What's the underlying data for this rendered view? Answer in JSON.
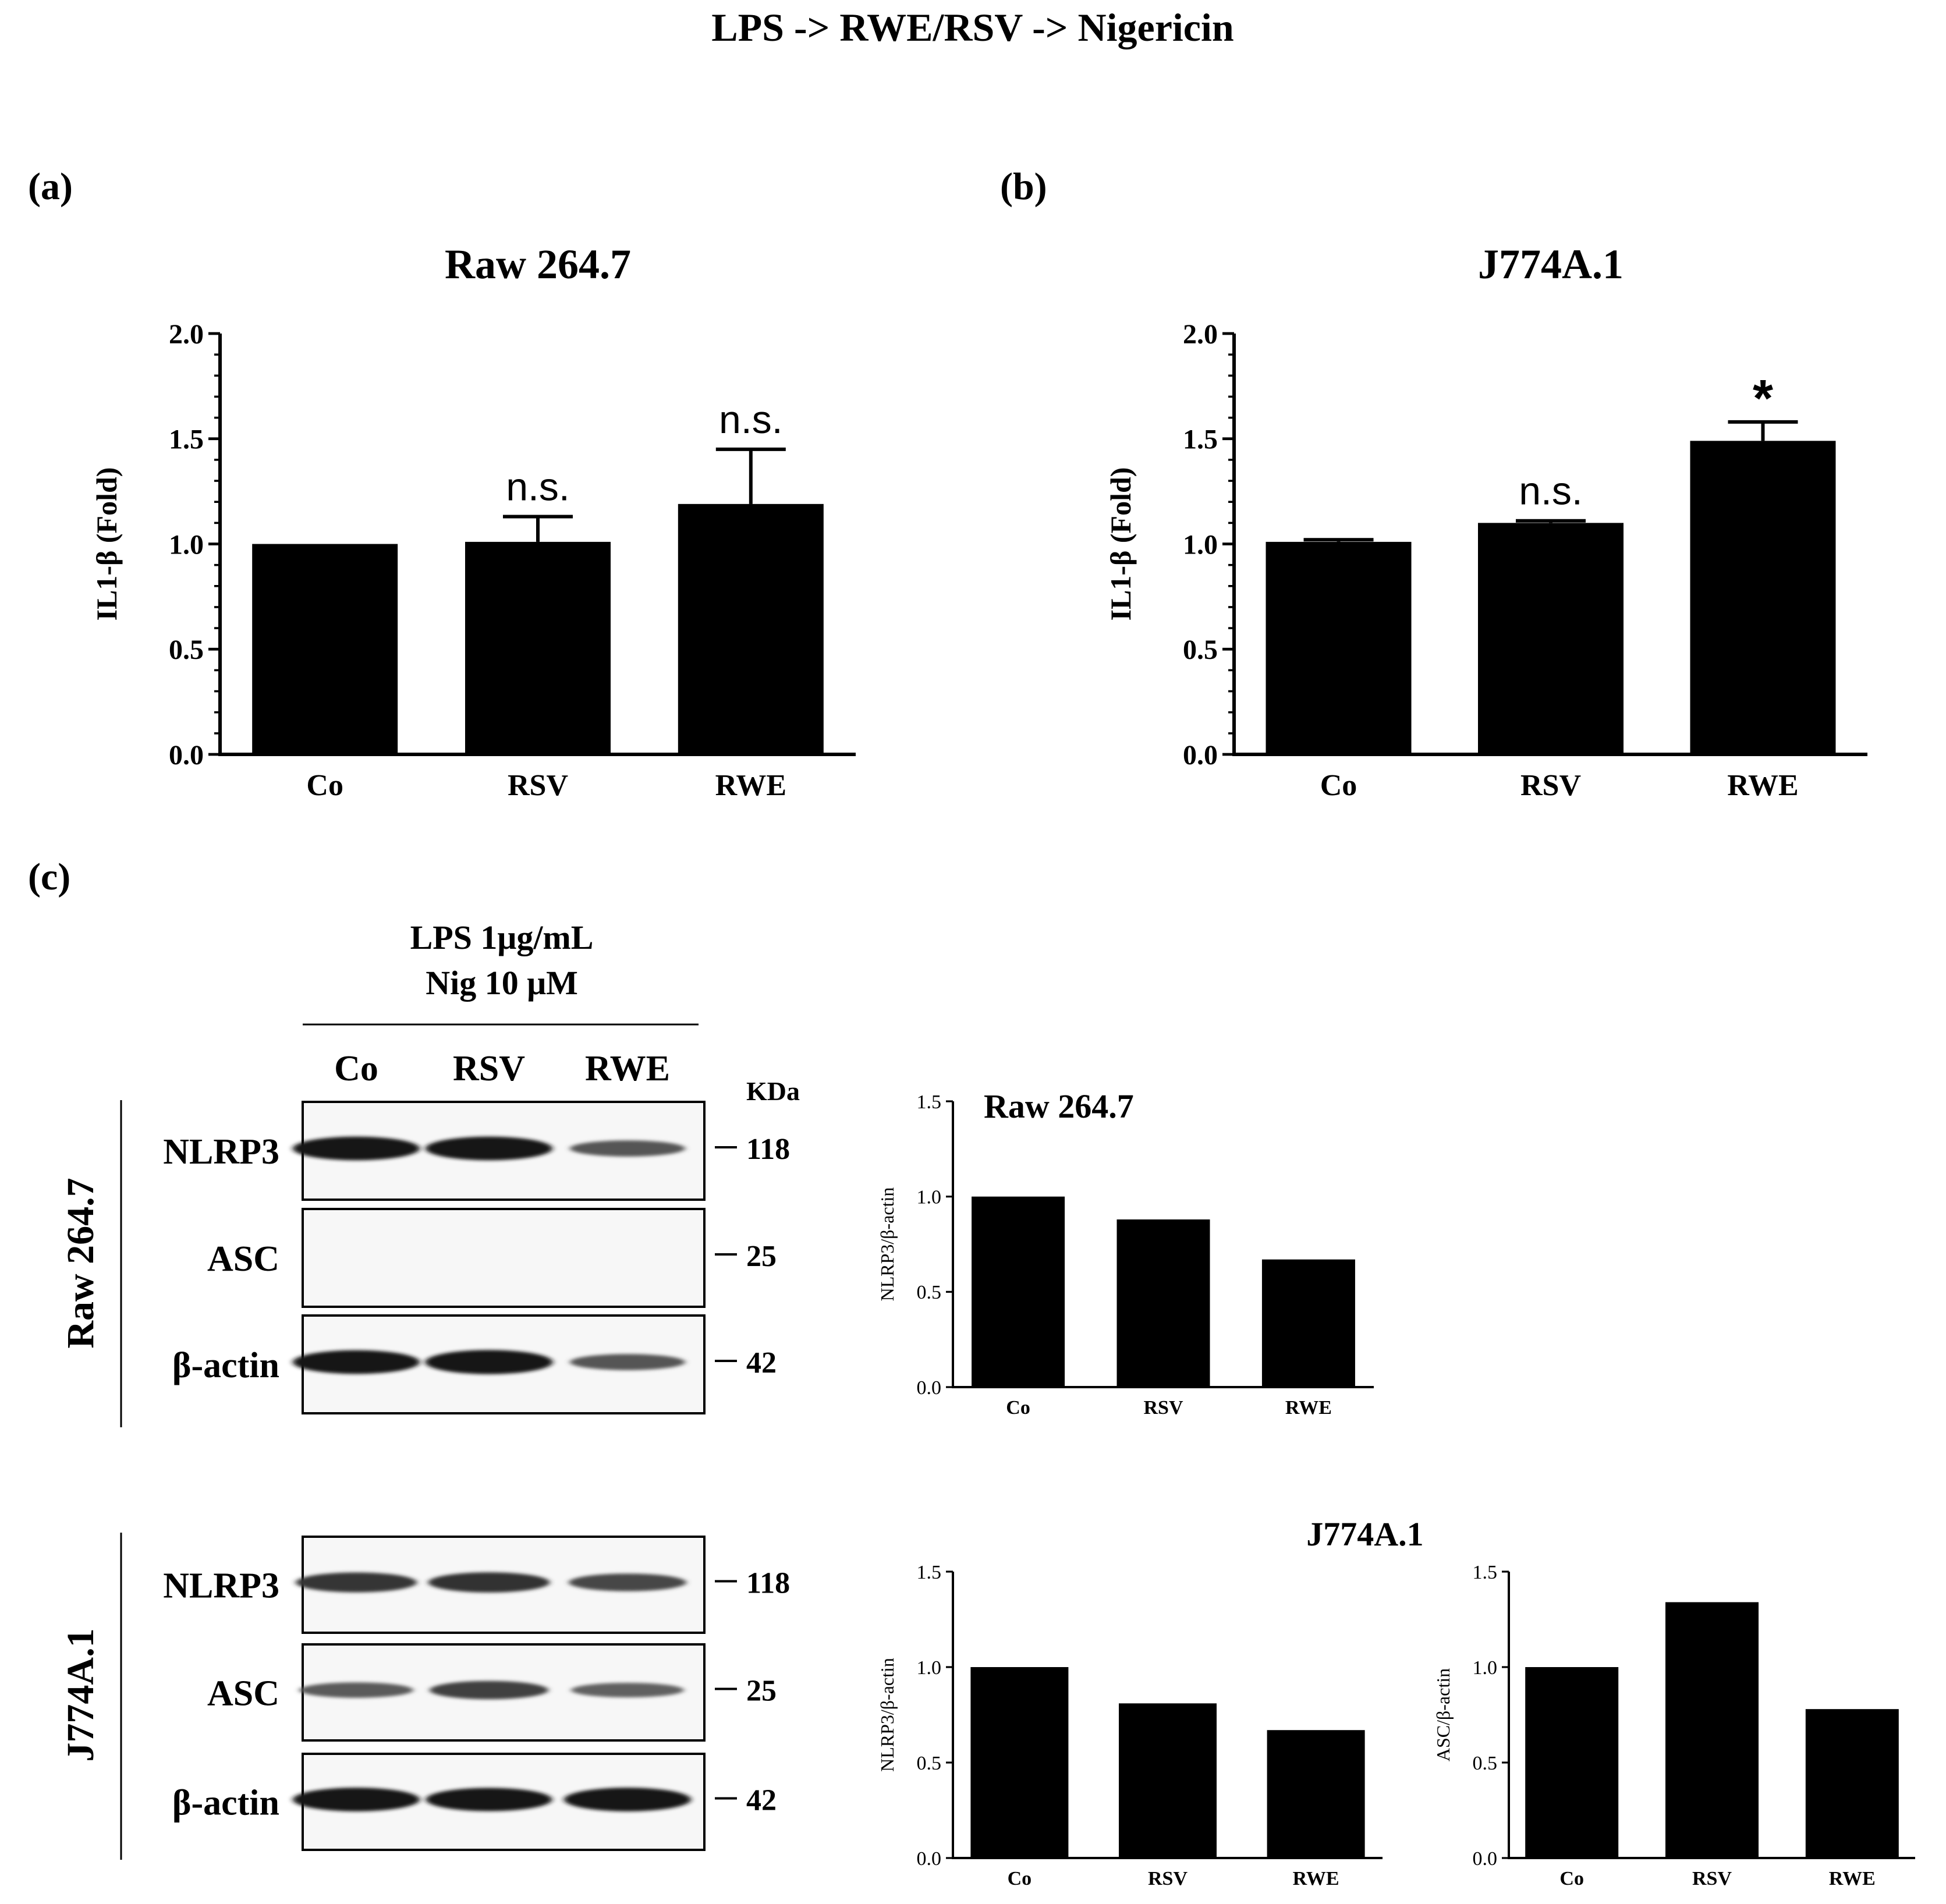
{
  "figure_title": "LPS -> RWE/RSV -> Nigericin",
  "panels": {
    "a": {
      "label": "(a)"
    },
    "b": {
      "label": "(b)"
    },
    "c": {
      "label": "(c)"
    }
  },
  "blot": {
    "treatment_line1": "LPS 1μg/mL",
    "treatment_line2": "Nig 10 μM",
    "lanes": [
      "Co",
      "RSV",
      "RWE"
    ],
    "kda_header": "KDa",
    "groups": [
      {
        "cell_line": "Raw 264.7",
        "rows": [
          {
            "protein": "NLRP3",
            "kda": "118",
            "intensities": [
              0.95,
              0.95,
              0.45
            ]
          },
          {
            "protein": "ASC",
            "kda": "25",
            "intensities": [
              0,
              0,
              0
            ]
          },
          {
            "protein": "β-actin",
            "kda": "42",
            "intensities": [
              0.95,
              0.98,
              0.45
            ]
          }
        ]
      },
      {
        "cell_line": "J774A.1",
        "rows": [
          {
            "protein": "NLRP3",
            "kda": "118",
            "intensities": [
              0.7,
              0.72,
              0.55
            ]
          },
          {
            "protein": "ASC",
            "kda": "25",
            "intensities": [
              0.4,
              0.6,
              0.35
            ]
          },
          {
            "protein": "β-actin",
            "kda": "42",
            "intensities": [
              0.95,
              0.92,
              0.95
            ]
          }
        ]
      }
    ]
  },
  "chart_data": [
    {
      "id": "chart-a",
      "type": "bar",
      "title": "Raw 264.7",
      "ylabel": "IL1-β (Fold)",
      "xlabel": "",
      "categories": [
        "Co",
        "RSV",
        "RWE"
      ],
      "values": [
        1.0,
        1.01,
        1.19
      ],
      "errors": [
        0,
        0.12,
        0.26
      ],
      "annotations": [
        "",
        "n.s.",
        "n.s."
      ],
      "ylim": [
        0,
        2.0
      ],
      "yticks": [
        "0.0",
        "0.5",
        "1.0",
        "1.5",
        "2.0"
      ],
      "minor_ticks": true
    },
    {
      "id": "chart-b",
      "type": "bar",
      "title": "J774A.1",
      "ylabel": "IL1-β (Fold)",
      "xlabel": "",
      "categories": [
        "Co",
        "RSV",
        "RWE"
      ],
      "values": [
        1.01,
        1.1,
        1.49
      ],
      "errors": [
        0.01,
        0.01,
        0.09
      ],
      "annotations": [
        "",
        "n.s.",
        "*"
      ],
      "ylim": [
        0,
        2.0
      ],
      "yticks": [
        "0.0",
        "0.5",
        "1.0",
        "1.5",
        "2.0"
      ],
      "minor_ticks": true
    },
    {
      "id": "chart-c1",
      "type": "bar",
      "title": "Raw 264.7",
      "ylabel": "NLRP3/β-actin",
      "xlabel": "",
      "categories": [
        "Co",
        "RSV",
        "RWE"
      ],
      "values": [
        1.0,
        0.88,
        0.67
      ],
      "ylim": [
        0,
        1.5
      ],
      "yticks": [
        "0.0",
        "0.5",
        "1.0",
        "1.5"
      ]
    },
    {
      "id": "chart-c2",
      "type": "bar",
      "title": "",
      "ylabel": "NLRP3/β-actin",
      "xlabel": "",
      "categories": [
        "Co",
        "RSV",
        "RWE"
      ],
      "values": [
        1.0,
        0.81,
        0.67
      ],
      "ylim": [
        0,
        1.5
      ],
      "yticks": [
        "0.0",
        "0.5",
        "1.0",
        "1.5"
      ]
    },
    {
      "id": "chart-c3",
      "type": "bar",
      "title": "",
      "ylabel": "ASC/β-actin",
      "xlabel": "",
      "categories": [
        "Co",
        "RSV",
        "RWE"
      ],
      "values": [
        1.0,
        1.34,
        0.78
      ],
      "ylim": [
        0,
        1.5
      ],
      "yticks": [
        "0.0",
        "0.5",
        "1.0",
        "1.5"
      ]
    }
  ],
  "j774_quant_title": "J774A.1"
}
